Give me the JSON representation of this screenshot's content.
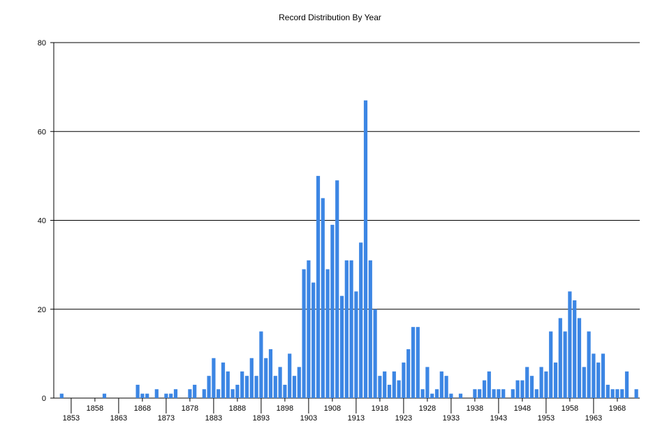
{
  "chart_data": {
    "type": "bar",
    "title": "Record Distribution By Year",
    "xlabel": "",
    "ylabel": "",
    "ylim": [
      0,
      80
    ],
    "yticks": [
      0,
      20,
      40,
      60,
      80
    ],
    "grid": "horizontal",
    "bar_color": "#3c86e4",
    "x_tick_labels": [
      1853,
      1858,
      1863,
      1868,
      1873,
      1878,
      1883,
      1888,
      1893,
      1898,
      1903,
      1908,
      1913,
      1918,
      1923,
      1928,
      1933,
      1938,
      1943,
      1948,
      1953,
      1958,
      1963,
      1968
    ],
    "data": [
      {
        "x": 1851,
        "y": 1
      },
      {
        "x": 1860,
        "y": 1
      },
      {
        "x": 1867,
        "y": 3
      },
      {
        "x": 1868,
        "y": 1
      },
      {
        "x": 1869,
        "y": 1
      },
      {
        "x": 1871,
        "y": 2
      },
      {
        "x": 1873,
        "y": 1
      },
      {
        "x": 1874,
        "y": 1
      },
      {
        "x": 1875,
        "y": 2
      },
      {
        "x": 1878,
        "y": 2
      },
      {
        "x": 1879,
        "y": 3
      },
      {
        "x": 1881,
        "y": 2
      },
      {
        "x": 1882,
        "y": 5
      },
      {
        "x": 1883,
        "y": 9
      },
      {
        "x": 1884,
        "y": 2
      },
      {
        "x": 1885,
        "y": 8
      },
      {
        "x": 1886,
        "y": 6
      },
      {
        "x": 1887,
        "y": 2
      },
      {
        "x": 1888,
        "y": 3
      },
      {
        "x": 1889,
        "y": 6
      },
      {
        "x": 1890,
        "y": 5
      },
      {
        "x": 1891,
        "y": 9
      },
      {
        "x": 1892,
        "y": 5
      },
      {
        "x": 1893,
        "y": 15
      },
      {
        "x": 1894,
        "y": 9
      },
      {
        "x": 1895,
        "y": 11
      },
      {
        "x": 1896,
        "y": 5
      },
      {
        "x": 1897,
        "y": 7
      },
      {
        "x": 1898,
        "y": 3
      },
      {
        "x": 1899,
        "y": 10
      },
      {
        "x": 1900,
        "y": 5
      },
      {
        "x": 1901,
        "y": 7
      },
      {
        "x": 1902,
        "y": 29
      },
      {
        "x": 1903,
        "y": 31
      },
      {
        "x": 1904,
        "y": 26
      },
      {
        "x": 1905,
        "y": 50
      },
      {
        "x": 1906,
        "y": 45
      },
      {
        "x": 1907,
        "y": 29
      },
      {
        "x": 1908,
        "y": 39
      },
      {
        "x": 1909,
        "y": 49
      },
      {
        "x": 1910,
        "y": 23
      },
      {
        "x": 1911,
        "y": 31
      },
      {
        "x": 1912,
        "y": 31
      },
      {
        "x": 1913,
        "y": 24
      },
      {
        "x": 1914,
        "y": 35
      },
      {
        "x": 1915,
        "y": 67
      },
      {
        "x": 1916,
        "y": 31
      },
      {
        "x": 1917,
        "y": 20
      },
      {
        "x": 1918,
        "y": 5
      },
      {
        "x": 1919,
        "y": 6
      },
      {
        "x": 1920,
        "y": 3
      },
      {
        "x": 1921,
        "y": 6
      },
      {
        "x": 1922,
        "y": 4
      },
      {
        "x": 1923,
        "y": 8
      },
      {
        "x": 1924,
        "y": 11
      },
      {
        "x": 1925,
        "y": 16
      },
      {
        "x": 1926,
        "y": 16
      },
      {
        "x": 1927,
        "y": 2
      },
      {
        "x": 1928,
        "y": 7
      },
      {
        "x": 1929,
        "y": 1
      },
      {
        "x": 1930,
        "y": 2
      },
      {
        "x": 1931,
        "y": 6
      },
      {
        "x": 1932,
        "y": 5
      },
      {
        "x": 1933,
        "y": 1
      },
      {
        "x": 1935,
        "y": 1
      },
      {
        "x": 1938,
        "y": 2
      },
      {
        "x": 1939,
        "y": 2
      },
      {
        "x": 1940,
        "y": 4
      },
      {
        "x": 1941,
        "y": 6
      },
      {
        "x": 1942,
        "y": 2
      },
      {
        "x": 1943,
        "y": 2
      },
      {
        "x": 1944,
        "y": 2
      },
      {
        "x": 1946,
        "y": 2
      },
      {
        "x": 1947,
        "y": 4
      },
      {
        "x": 1948,
        "y": 4
      },
      {
        "x": 1949,
        "y": 7
      },
      {
        "x": 1950,
        "y": 5
      },
      {
        "x": 1951,
        "y": 2
      },
      {
        "x": 1952,
        "y": 7
      },
      {
        "x": 1953,
        "y": 6
      },
      {
        "x": 1954,
        "y": 15
      },
      {
        "x": 1955,
        "y": 8
      },
      {
        "x": 1956,
        "y": 18
      },
      {
        "x": 1957,
        "y": 15
      },
      {
        "x": 1958,
        "y": 24
      },
      {
        "x": 1959,
        "y": 22
      },
      {
        "x": 1960,
        "y": 18
      },
      {
        "x": 1961,
        "y": 7
      },
      {
        "x": 1962,
        "y": 15
      },
      {
        "x": 1963,
        "y": 10
      },
      {
        "x": 1964,
        "y": 8
      },
      {
        "x": 1965,
        "y": 10
      },
      {
        "x": 1966,
        "y": 3
      },
      {
        "x": 1967,
        "y": 2
      },
      {
        "x": 1968,
        "y": 2
      },
      {
        "x": 1969,
        "y": 2
      },
      {
        "x": 1970,
        "y": 6
      },
      {
        "x": 1972,
        "y": 2
      }
    ]
  }
}
